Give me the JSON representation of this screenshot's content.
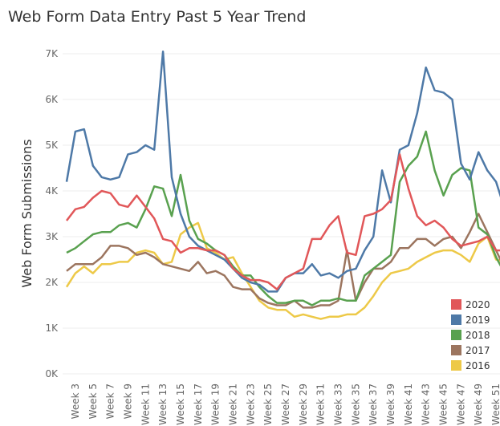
{
  "chart_data": {
    "type": "line",
    "title": "Web Form Data Entry Past 5 Year Trend",
    "y_label": "Web Form Submissions",
    "categories": [
      null,
      "Week 3",
      null,
      "Week 5",
      null,
      "Week 7",
      null,
      "Week 9",
      null,
      "Week 11",
      null,
      "Week 13",
      null,
      "Week 15",
      null,
      "Week 17",
      null,
      "Week 19",
      null,
      "Week 21",
      null,
      "Week 23",
      null,
      "Week 25",
      null,
      "Week 27",
      null,
      "Week 29",
      null,
      "Week 31",
      null,
      "Week 33",
      null,
      "Week 35",
      null,
      "Week 37",
      null,
      "Week 39",
      null,
      "Week 41",
      null,
      "Week 43",
      null,
      "Week 45",
      null,
      "Week 47",
      null,
      "Week 49",
      null,
      "Week 51",
      null
    ],
    "series": [
      {
        "name": "2020",
        "color": "#e15759",
        "values": [
          3350,
          3600,
          3650,
          3850,
          4000,
          3950,
          3700,
          3650,
          3900,
          3650,
          3400,
          2950,
          2900,
          2650,
          2750,
          2750,
          2700,
          2700,
          2600,
          2300,
          2150,
          2050,
          2050,
          2000,
          1850,
          2100,
          2200,
          2300,
          2950,
          2950,
          3250,
          3450,
          2650,
          2600,
          3450,
          3500,
          3600,
          3800,
          4800,
          4050,
          3450,
          3250,
          3350,
          3200,
          2950,
          2800,
          2850,
          2900,
          3000,
          2700,
          2700
        ]
      },
      {
        "name": "2019",
        "color": "#4e79a7",
        "values": [
          4200,
          5300,
          5350,
          4550,
          4300,
          4250,
          4300,
          4800,
          4850,
          5000,
          4900,
          7050,
          4300,
          3500,
          3000,
          2800,
          2700,
          2600,
          2500,
          2300,
          2100,
          2000,
          1950,
          1800,
          1800,
          2100,
          2200,
          2200,
          2400,
          2150,
          2200,
          2100,
          2250,
          2300,
          2700,
          3000,
          4450,
          3750,
          4900,
          5000,
          5700,
          6700,
          6200,
          6150,
          6000,
          4600,
          4250,
          4850,
          4450,
          4200,
          3600
        ]
      },
      {
        "name": "2018",
        "color": "#59a14f",
        "values": [
          2650,
          2750,
          2900,
          3050,
          3100,
          3100,
          3250,
          3300,
          3200,
          3600,
          4100,
          4050,
          3450,
          4350,
          3350,
          2950,
          2850,
          2700,
          2600,
          2350,
          2150,
          2150,
          1900,
          1700,
          1550,
          1550,
          1600,
          1600,
          1500,
          1600,
          1600,
          1650,
          1600,
          1600,
          2150,
          2300,
          2450,
          2600,
          4200,
          4550,
          4750,
          5300,
          4450,
          3900,
          4350,
          4500,
          4450,
          3200,
          3050,
          2550,
          2200
        ]
      },
      {
        "name": "2017",
        "color": "#9c755f",
        "values": [
          2250,
          2400,
          2400,
          2400,
          2550,
          2800,
          2800,
          2750,
          2600,
          2650,
          2550,
          2400,
          2350,
          2300,
          2250,
          2450,
          2200,
          2250,
          2150,
          1900,
          1850,
          1850,
          1650,
          1550,
          1500,
          1500,
          1600,
          1450,
          1450,
          1500,
          1500,
          1600,
          2700,
          1600,
          2000,
          2300,
          2300,
          2450,
          2750,
          2750,
          2950,
          2950,
          2800,
          2950,
          3000,
          2750,
          3100,
          3500,
          3100,
          2700,
          2300
        ]
      },
      {
        "name": "2016",
        "color": "#edc948",
        "values": [
          1900,
          2200,
          2350,
          2200,
          2400,
          2400,
          2450,
          2450,
          2650,
          2700,
          2650,
          2400,
          2450,
          3050,
          3200,
          3300,
          2750,
          2650,
          2500,
          2550,
          2200,
          1900,
          1600,
          1450,
          1400,
          1400,
          1250,
          1300,
          1250,
          1200,
          1250,
          1250,
          1300,
          1300,
          1450,
          1700,
          2000,
          2200,
          2250,
          2300,
          2450,
          2550,
          2650,
          2700,
          2700,
          2600,
          2450,
          2850,
          3000,
          2500,
          2450
        ]
      }
    ],
    "ylim": [
      0,
      7000
    ],
    "yticks": [
      {
        "value": 0,
        "label": "0K"
      },
      {
        "value": 1000,
        "label": "1K"
      },
      {
        "value": 2000,
        "label": "2K"
      },
      {
        "value": 3000,
        "label": "3K"
      },
      {
        "value": 4000,
        "label": "4K"
      },
      {
        "value": 5000,
        "label": "5K"
      },
      {
        "value": 6000,
        "label": "6K"
      },
      {
        "value": 7000,
        "label": "7K"
      }
    ],
    "grid": true,
    "legend": "lower right"
  }
}
